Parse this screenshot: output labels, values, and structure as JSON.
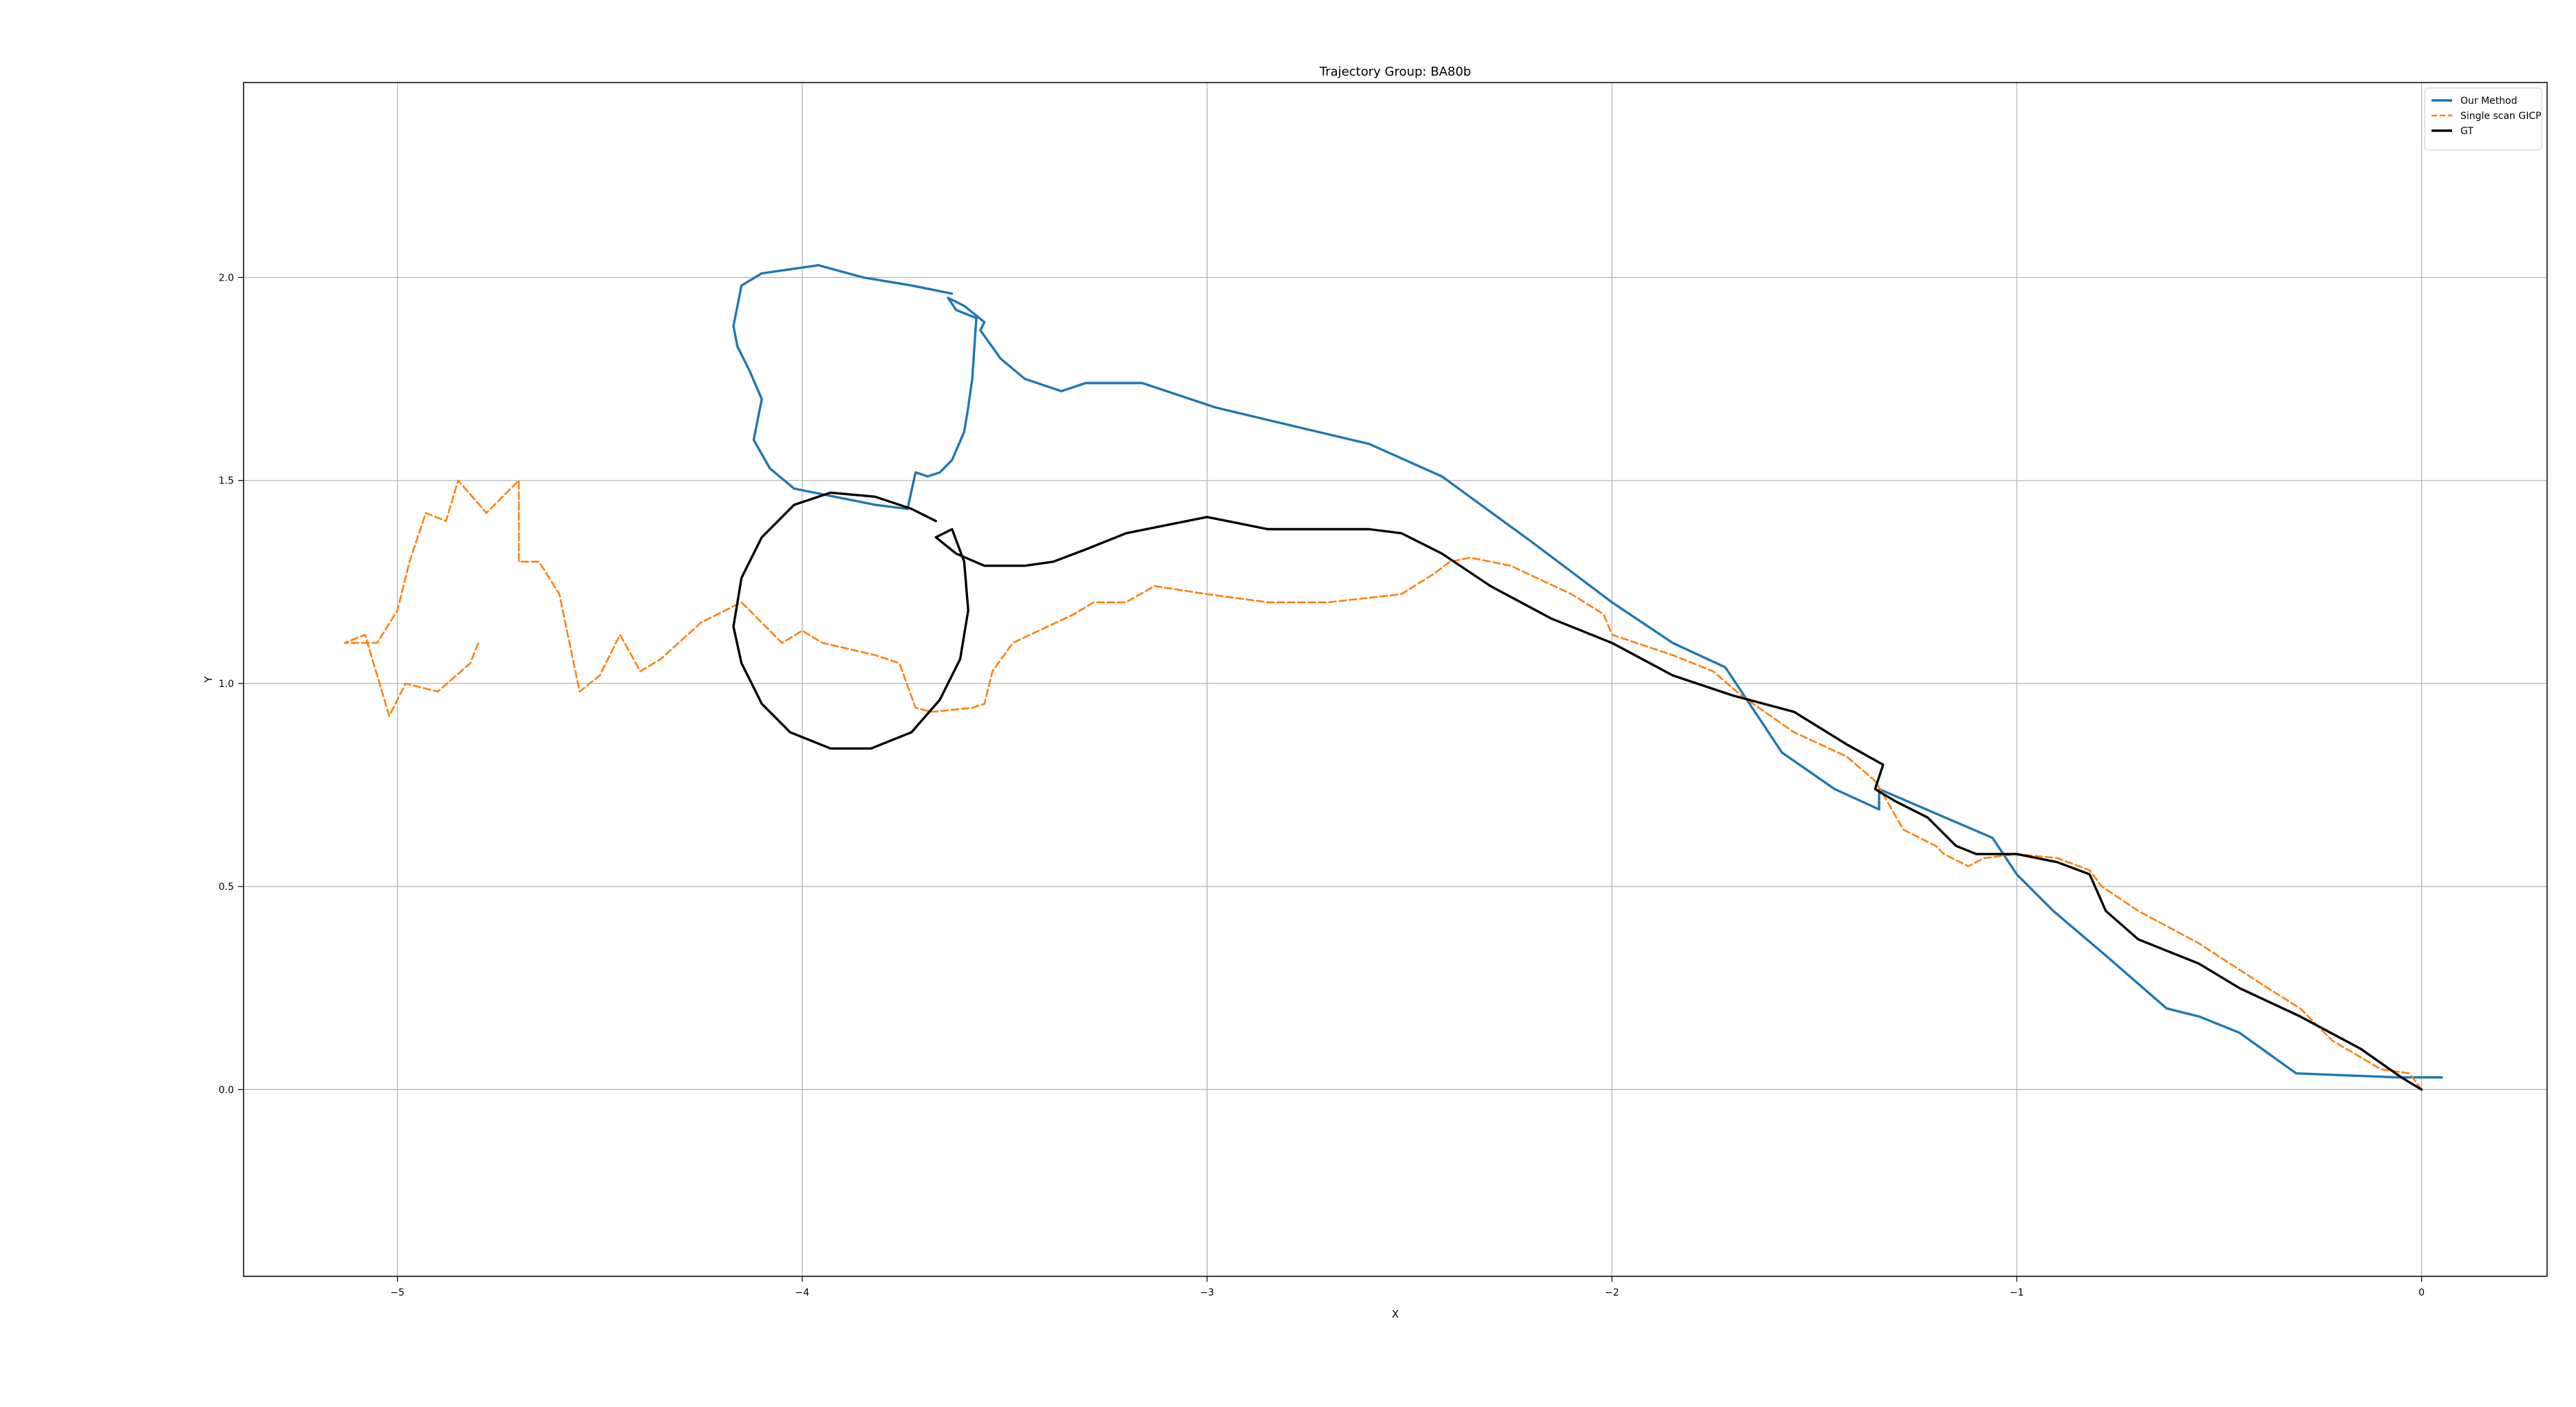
{
  "chart_data": {
    "type": "line",
    "title": "Trajectory Group: BA80b",
    "xlabel": "X",
    "ylabel": "Y",
    "xlim": [
      -5.38,
      0.31
    ],
    "ylim": [
      -0.46,
      2.48
    ],
    "grid": true,
    "legend_position": "top-right",
    "xticks": [
      {
        "value": -5,
        "label": "−5"
      },
      {
        "value": -4,
        "label": "−4"
      },
      {
        "value": -3,
        "label": "−3"
      },
      {
        "value": -2,
        "label": "−2"
      },
      {
        "value": -1,
        "label": "−1"
      },
      {
        "value": 0,
        "label": "0"
      }
    ],
    "yticks": [
      {
        "value": 0.0,
        "label": "0.0"
      },
      {
        "value": 0.5,
        "label": "0.5"
      },
      {
        "value": 1.0,
        "label": "1.0"
      },
      {
        "value": 1.5,
        "label": "1.5"
      },
      {
        "value": 2.0,
        "label": "2.0"
      }
    ],
    "series": [
      {
        "name": "Our Method",
        "color": "#1f77b4",
        "style": "solid",
        "points": [
          [
            0.05,
            0.03
          ],
          [
            0.0,
            0.03
          ],
          [
            -0.06,
            0.03
          ],
          [
            -0.31,
            0.04
          ],
          [
            -0.45,
            0.14
          ],
          [
            -0.55,
            0.18
          ],
          [
            -0.63,
            0.2
          ],
          [
            -0.78,
            0.33
          ],
          [
            -0.91,
            0.44
          ],
          [
            -1.0,
            0.53
          ],
          [
            -1.06,
            0.62
          ],
          [
            -1.2,
            0.68
          ],
          [
            -1.34,
            0.74
          ],
          [
            -1.34,
            0.69
          ],
          [
            -1.45,
            0.74
          ],
          [
            -1.58,
            0.83
          ],
          [
            -1.68,
            0.98
          ],
          [
            -1.72,
            1.04
          ],
          [
            -1.85,
            1.1
          ],
          [
            -2.0,
            1.2
          ],
          [
            -2.2,
            1.35
          ],
          [
            -2.42,
            1.51
          ],
          [
            -2.6,
            1.59
          ],
          [
            -2.77,
            1.63
          ],
          [
            -2.98,
            1.68
          ],
          [
            -3.16,
            1.74
          ],
          [
            -3.3,
            1.74
          ],
          [
            -3.36,
            1.72
          ],
          [
            -3.45,
            1.75
          ],
          [
            -3.51,
            1.8
          ],
          [
            -3.56,
            1.87
          ],
          [
            -3.55,
            1.89
          ],
          [
            -3.6,
            1.93
          ],
          [
            -3.64,
            1.95
          ],
          [
            -3.62,
            1.92
          ],
          [
            -3.57,
            1.9
          ],
          [
            -3.58,
            1.75
          ],
          [
            -3.59,
            1.68
          ],
          [
            -3.6,
            1.62
          ],
          [
            -3.63,
            1.55
          ],
          [
            -3.66,
            1.52
          ],
          [
            -3.69,
            1.51
          ],
          [
            -3.72,
            1.52
          ],
          [
            -3.74,
            1.43
          ],
          [
            -3.82,
            1.44
          ],
          [
            -3.92,
            1.46
          ],
          [
            -4.02,
            1.48
          ],
          [
            -4.08,
            1.53
          ],
          [
            -4.12,
            1.6
          ],
          [
            -4.1,
            1.7
          ],
          [
            -4.13,
            1.77
          ],
          [
            -4.16,
            1.83
          ],
          [
            -4.17,
            1.88
          ],
          [
            -4.15,
            1.98
          ],
          [
            -4.1,
            2.01
          ],
          [
            -3.96,
            2.03
          ],
          [
            -3.85,
            2.0
          ],
          [
            -3.73,
            1.98
          ],
          [
            -3.68,
            1.97
          ],
          [
            -3.63,
            1.96
          ]
        ]
      },
      {
        "name": "Single scan GICP",
        "color": "#ff7f0e",
        "style": "dashed",
        "points": [
          [
            0.0,
            0.0
          ],
          [
            -0.03,
            0.04
          ],
          [
            -0.1,
            0.05
          ],
          [
            -0.22,
            0.12
          ],
          [
            -0.3,
            0.2
          ],
          [
            -0.38,
            0.25
          ],
          [
            -0.55,
            0.36
          ],
          [
            -0.7,
            0.44
          ],
          [
            -0.79,
            0.5
          ],
          [
            -0.82,
            0.54
          ],
          [
            -0.9,
            0.57
          ],
          [
            -1.0,
            0.58
          ],
          [
            -1.08,
            0.57
          ],
          [
            -1.12,
            0.55
          ],
          [
            -1.18,
            0.58
          ],
          [
            -1.2,
            0.6
          ],
          [
            -1.28,
            0.64
          ],
          [
            -1.32,
            0.71
          ],
          [
            -1.35,
            0.76
          ],
          [
            -1.42,
            0.82
          ],
          [
            -1.55,
            0.88
          ],
          [
            -1.68,
            0.97
          ],
          [
            -1.75,
            1.03
          ],
          [
            -1.85,
            1.07
          ],
          [
            -2.0,
            1.12
          ],
          [
            -2.02,
            1.17
          ],
          [
            -2.1,
            1.22
          ],
          [
            -2.25,
            1.29
          ],
          [
            -2.35,
            1.31
          ],
          [
            -2.4,
            1.3
          ],
          [
            -2.44,
            1.27
          ],
          [
            -2.52,
            1.22
          ],
          [
            -2.7,
            1.2
          ],
          [
            -2.85,
            1.2
          ],
          [
            -3.0,
            1.22
          ],
          [
            -3.13,
            1.24
          ],
          [
            -3.2,
            1.2
          ],
          [
            -3.28,
            1.2
          ],
          [
            -3.33,
            1.17
          ],
          [
            -3.48,
            1.1
          ],
          [
            -3.53,
            1.03
          ],
          [
            -3.55,
            0.95
          ],
          [
            -3.58,
            0.94
          ],
          [
            -3.68,
            0.93
          ],
          [
            -3.72,
            0.94
          ],
          [
            -3.76,
            1.05
          ],
          [
            -3.82,
            1.07
          ],
          [
            -3.95,
            1.1
          ],
          [
            -4.0,
            1.13
          ],
          [
            -4.05,
            1.1
          ],
          [
            -4.15,
            1.2
          ],
          [
            -4.25,
            1.15
          ],
          [
            -4.35,
            1.06
          ],
          [
            -4.4,
            1.03
          ],
          [
            -4.45,
            1.12
          ],
          [
            -4.5,
            1.02
          ],
          [
            -4.55,
            0.98
          ],
          [
            -4.6,
            1.22
          ],
          [
            -4.65,
            1.3
          ],
          [
            -4.7,
            1.3
          ],
          [
            -4.7,
            1.5
          ],
          [
            -4.78,
            1.42
          ],
          [
            -4.85,
            1.5
          ],
          [
            -4.88,
            1.4
          ],
          [
            -4.93,
            1.42
          ],
          [
            -4.97,
            1.3
          ],
          [
            -5.0,
            1.18
          ],
          [
            -5.05,
            1.1
          ],
          [
            -5.13,
            1.1
          ],
          [
            -5.08,
            1.12
          ],
          [
            -5.02,
            0.92
          ],
          [
            -4.98,
            1.0
          ],
          [
            -4.9,
            0.98
          ],
          [
            -4.82,
            1.05
          ],
          [
            -4.8,
            1.1
          ]
        ]
      },
      {
        "name": "GT",
        "color": "#000000",
        "style": "solid",
        "points": [
          [
            0.0,
            0.0
          ],
          [
            -0.05,
            0.03
          ],
          [
            -0.15,
            0.1
          ],
          [
            -0.3,
            0.18
          ],
          [
            -0.45,
            0.25
          ],
          [
            -0.55,
            0.31
          ],
          [
            -0.7,
            0.37
          ],
          [
            -0.78,
            0.44
          ],
          [
            -0.82,
            0.53
          ],
          [
            -0.9,
            0.56
          ],
          [
            -1.0,
            0.58
          ],
          [
            -1.1,
            0.58
          ],
          [
            -1.15,
            0.6
          ],
          [
            -1.22,
            0.67
          ],
          [
            -1.3,
            0.71
          ],
          [
            -1.35,
            0.74
          ],
          [
            -1.33,
            0.8
          ],
          [
            -1.42,
            0.85
          ],
          [
            -1.55,
            0.93
          ],
          [
            -1.7,
            0.97
          ],
          [
            -1.85,
            1.02
          ],
          [
            -2.0,
            1.1
          ],
          [
            -2.15,
            1.16
          ],
          [
            -2.3,
            1.24
          ],
          [
            -2.42,
            1.32
          ],
          [
            -2.52,
            1.37
          ],
          [
            -2.6,
            1.38
          ],
          [
            -2.68,
            1.38
          ],
          [
            -2.75,
            1.38
          ],
          [
            -2.85,
            1.38
          ],
          [
            -3.0,
            1.41
          ],
          [
            -3.1,
            1.39
          ],
          [
            -3.2,
            1.37
          ],
          [
            -3.3,
            1.33
          ],
          [
            -3.38,
            1.3
          ],
          [
            -3.45,
            1.29
          ],
          [
            -3.55,
            1.29
          ],
          [
            -3.62,
            1.32
          ],
          [
            -3.67,
            1.36
          ],
          [
            -3.63,
            1.38
          ],
          [
            -3.6,
            1.3
          ],
          [
            -3.59,
            1.18
          ],
          [
            -3.61,
            1.06
          ],
          [
            -3.66,
            0.96
          ],
          [
            -3.73,
            0.88
          ],
          [
            -3.83,
            0.84
          ],
          [
            -3.93,
            0.84
          ],
          [
            -4.03,
            0.88
          ],
          [
            -4.1,
            0.95
          ],
          [
            -4.15,
            1.05
          ],
          [
            -4.17,
            1.14
          ],
          [
            -4.15,
            1.26
          ],
          [
            -4.1,
            1.36
          ],
          [
            -4.02,
            1.44
          ],
          [
            -3.93,
            1.47
          ],
          [
            -3.82,
            1.46
          ],
          [
            -3.73,
            1.43
          ],
          [
            -3.67,
            1.4
          ]
        ]
      }
    ]
  }
}
